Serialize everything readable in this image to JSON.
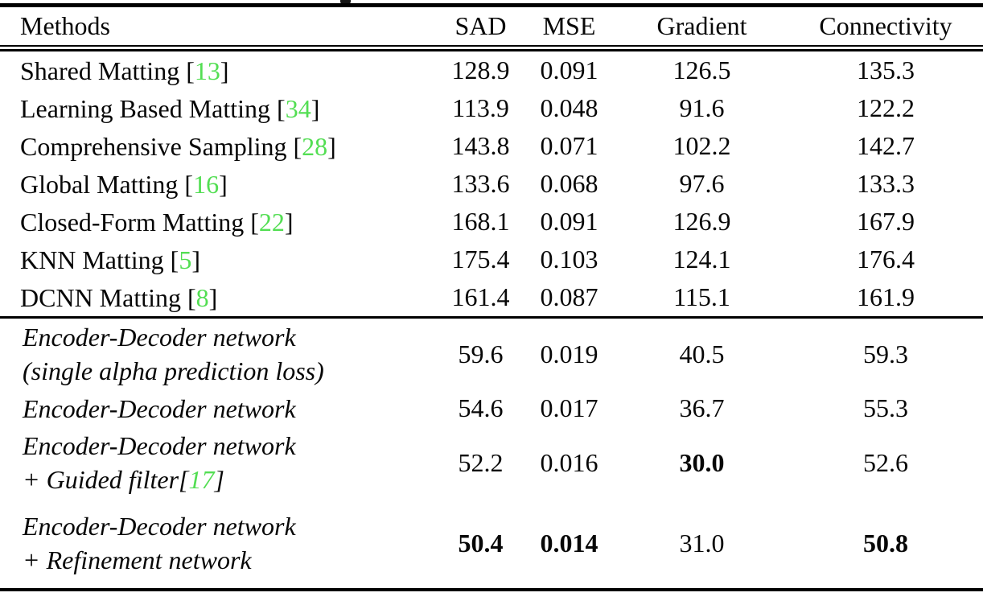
{
  "colors": {
    "citation_green": "#53de53",
    "text": "#070707",
    "rule": "#000000",
    "background": "#ffffff"
  },
  "table": {
    "columns": [
      "Methods",
      "SAD",
      "MSE",
      "Gradient",
      "Connectivity"
    ],
    "rows": [
      {
        "italic": false,
        "method": [
          [
            {
              "t": "Shared Matting ["
            },
            {
              "t": "13",
              "cite": true
            },
            {
              "t": "]"
            }
          ]
        ],
        "values": [
          "128.9",
          "0.091",
          "126.5",
          "135.3"
        ],
        "bold": [
          false,
          false,
          false,
          false
        ]
      },
      {
        "italic": false,
        "method": [
          [
            {
              "t": "Learning Based Matting ["
            },
            {
              "t": "34",
              "cite": true
            },
            {
              "t": "]"
            }
          ]
        ],
        "values": [
          "113.9",
          "0.048",
          "91.6",
          "122.2"
        ],
        "bold": [
          false,
          false,
          false,
          false
        ]
      },
      {
        "italic": false,
        "method": [
          [
            {
              "t": "Comprehensive Sampling ["
            },
            {
              "t": "28",
              "cite": true
            },
            {
              "t": "]"
            }
          ]
        ],
        "values": [
          "143.8",
          "0.071",
          "102.2",
          "142.7"
        ],
        "bold": [
          false,
          false,
          false,
          false
        ]
      },
      {
        "italic": false,
        "method": [
          [
            {
              "t": "Global Matting ["
            },
            {
              "t": "16",
              "cite": true
            },
            {
              "t": "]"
            }
          ]
        ],
        "values": [
          "133.6",
          "0.068",
          "97.6",
          "133.3"
        ],
        "bold": [
          false,
          false,
          false,
          false
        ]
      },
      {
        "italic": false,
        "method": [
          [
            {
              "t": "Closed-Form Matting ["
            },
            {
              "t": "22",
              "cite": true
            },
            {
              "t": "]"
            }
          ]
        ],
        "values": [
          "168.1",
          "0.091",
          "126.9",
          "167.9"
        ],
        "bold": [
          false,
          false,
          false,
          false
        ]
      },
      {
        "italic": false,
        "method": [
          [
            {
              "t": "KNN Matting ["
            },
            {
              "t": "5",
              "cite": true
            },
            {
              "t": "]"
            }
          ]
        ],
        "values": [
          "175.4",
          "0.103",
          "124.1",
          "176.4"
        ],
        "bold": [
          false,
          false,
          false,
          false
        ]
      },
      {
        "italic": false,
        "method": [
          [
            {
              "t": "DCNN Matting ["
            },
            {
              "t": "8",
              "cite": true
            },
            {
              "t": "]"
            }
          ]
        ],
        "values": [
          "161.4",
          "0.087",
          "115.1",
          "161.9"
        ],
        "bold": [
          false,
          false,
          false,
          false
        ]
      },
      {
        "italic": true,
        "rule_before": true,
        "method": [
          [
            {
              "t": "Encoder-Decoder network"
            }
          ],
          [
            {
              "t": "(single alpha prediction loss)"
            }
          ]
        ],
        "values": [
          "59.6",
          "0.019",
          "40.5",
          "59.3"
        ],
        "bold": [
          false,
          false,
          false,
          false
        ]
      },
      {
        "italic": true,
        "method": [
          [
            {
              "t": "Encoder-Decoder network"
            }
          ]
        ],
        "values": [
          "54.6",
          "0.017",
          "36.7",
          "55.3"
        ],
        "bold": [
          false,
          false,
          false,
          false
        ]
      },
      {
        "italic": true,
        "method": [
          [
            {
              "t": "Encoder-Decoder network"
            }
          ],
          [
            {
              "t": "+ Guided filter["
            },
            {
              "t": "17",
              "cite": true
            },
            {
              "t": "]"
            }
          ]
        ],
        "values": [
          "52.2",
          "0.016",
          "30.0",
          "52.6"
        ],
        "bold": [
          false,
          false,
          true,
          false
        ]
      },
      {
        "italic": true,
        "method": [
          [
            {
              "t": "Encoder-Decoder network"
            }
          ],
          [
            {
              "t": "+ Refinement network"
            }
          ]
        ],
        "values": [
          "50.4",
          "0.014",
          "31.0",
          "50.8"
        ],
        "bold": [
          true,
          true,
          false,
          true
        ]
      }
    ]
  }
}
